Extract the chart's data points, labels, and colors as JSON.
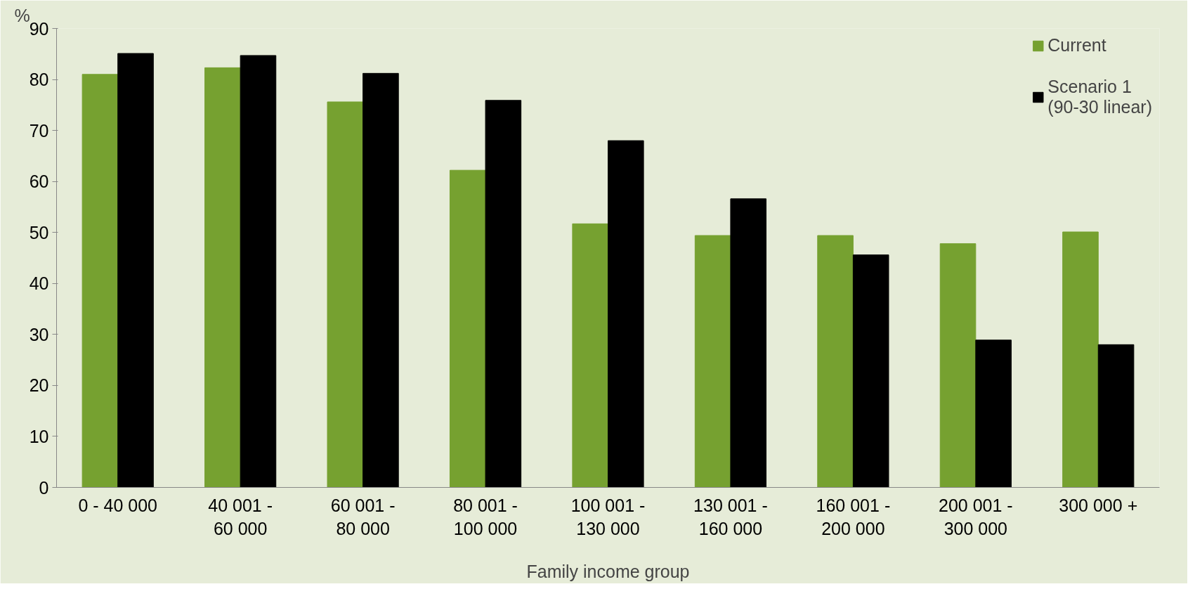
{
  "chart_data": {
    "type": "bar",
    "xlabel": "Family income group",
    "ylabel": "%",
    "categories": [
      "0 - 40 000",
      "40 001 -\n60 000",
      "60 001 -\n80 000",
      "80 001 -\n100 000",
      "100 001 -\n130 000",
      "130 001 -\n160 000",
      "160 001 -\n200 000",
      "200 001 -\n300 000",
      "300 000 +"
    ],
    "series": [
      {
        "name": "Current",
        "color": "#76a130",
        "values": [
          81,
          82.3,
          75.6,
          62.2,
          51.7,
          49.4,
          49.4,
          47.8,
          50.1
        ]
      },
      {
        "name": "Scenario 1\n(90-30 linear)",
        "color": "#000000",
        "values": [
          85.1,
          84.7,
          81.2,
          75.9,
          68,
          56.6,
          45.6,
          28.9,
          28
        ]
      }
    ],
    "ylim": [
      0,
      90
    ],
    "yticks": [
      0,
      10,
      20,
      30,
      40,
      50,
      60,
      70,
      80,
      90
    ],
    "grid": false,
    "legend": "top right"
  }
}
